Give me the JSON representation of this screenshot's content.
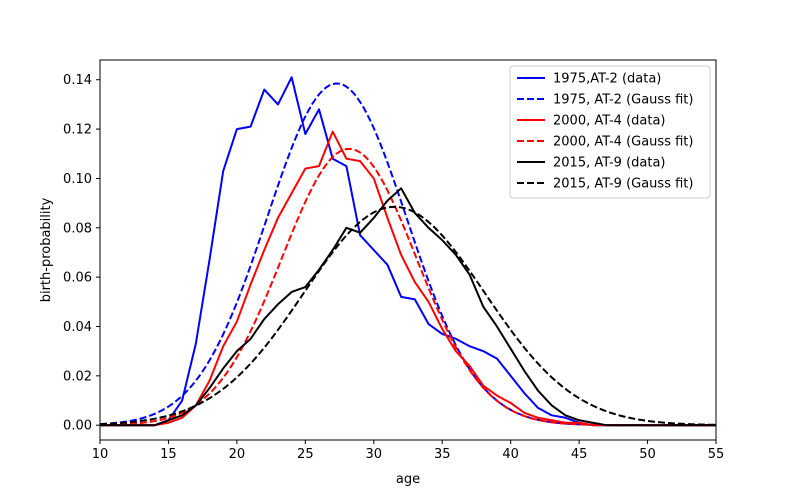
{
  "chart_data": {
    "type": "line",
    "title": "",
    "xlabel": "age",
    "ylabel": "birth-probability",
    "xlim": [
      10,
      55
    ],
    "ylim": [
      -0.006,
      0.148
    ],
    "xticks": [
      10,
      15,
      20,
      25,
      30,
      35,
      40,
      45,
      50,
      55
    ],
    "yticks": [
      0.0,
      0.02,
      0.04,
      0.06,
      0.08,
      0.1,
      0.12,
      0.14
    ],
    "ytick_labels": [
      "0.00",
      "0.02",
      "0.04",
      "0.06",
      "0.08",
      "0.10",
      "0.12",
      "0.14"
    ],
    "grid": false,
    "legend_position": "top-right",
    "series": [
      {
        "name": "1975,AT-2 (data)",
        "color": "#0000ff",
        "dash": "solid",
        "x": [
          10,
          11,
          12,
          13,
          14,
          15,
          16,
          17,
          18,
          19,
          20,
          21,
          22,
          23,
          24,
          25,
          26,
          27,
          28,
          29,
          30,
          31,
          32,
          33,
          34,
          35,
          36,
          37,
          38,
          39,
          40,
          41,
          42,
          43,
          44,
          45,
          46,
          47,
          48,
          49,
          50,
          51,
          52,
          53,
          54,
          55
        ],
        "y": [
          0,
          0,
          0,
          0,
          0,
          0.002,
          0.01,
          0.033,
          0.067,
          0.103,
          0.12,
          0.121,
          0.136,
          0.13,
          0.141,
          0.118,
          0.128,
          0.108,
          0.105,
          0.077,
          0.071,
          0.065,
          0.052,
          0.051,
          0.041,
          0.037,
          0.035,
          0.032,
          0.03,
          0.027,
          0.02,
          0.013,
          0.007,
          0.004,
          0.003,
          0.001,
          0,
          0,
          0,
          0,
          0,
          0,
          0,
          0,
          0,
          0
        ]
      },
      {
        "name": "1975, AT-2 (Gauss fit)",
        "color": "#0000ff",
        "dash": "dashed",
        "gauss": {
          "mu": 27.3,
          "sigma": 5.1,
          "peak": 0.1385
        }
      },
      {
        "name": "2000, AT-4 (data)",
        "color": "#ff0000",
        "dash": "solid",
        "x": [
          10,
          11,
          12,
          13,
          14,
          15,
          16,
          17,
          18,
          19,
          20,
          21,
          22,
          23,
          24,
          25,
          26,
          27,
          28,
          29,
          30,
          31,
          32,
          33,
          34,
          35,
          36,
          37,
          38,
          39,
          40,
          41,
          42,
          43,
          44,
          45,
          46,
          47,
          48,
          49,
          50,
          51,
          52,
          53,
          54,
          55
        ],
        "y": [
          0,
          0,
          0,
          0,
          0,
          0.001,
          0.003,
          0.008,
          0.018,
          0.032,
          0.042,
          0.057,
          0.071,
          0.084,
          0.094,
          0.104,
          0.105,
          0.119,
          0.108,
          0.107,
          0.1,
          0.084,
          0.069,
          0.058,
          0.05,
          0.039,
          0.03,
          0.024,
          0.016,
          0.012,
          0.009,
          0.005,
          0.003,
          0.002,
          0.001,
          0.001,
          0,
          0,
          0,
          0,
          0,
          0,
          0,
          0,
          0,
          0
        ]
      },
      {
        "name": "2000, AT-4 (Gauss fit)",
        "color": "#ff0000",
        "dash": "dashed",
        "gauss": {
          "mu": 28.2,
          "sigma": 4.9,
          "peak": 0.112
        }
      },
      {
        "name": "2015, AT-9 (data)",
        "color": "#000000",
        "dash": "solid",
        "x": [
          10,
          11,
          12,
          13,
          14,
          15,
          16,
          17,
          18,
          19,
          20,
          21,
          22,
          23,
          24,
          25,
          26,
          27,
          28,
          29,
          30,
          31,
          32,
          33,
          34,
          35,
          36,
          37,
          38,
          39,
          40,
          41,
          42,
          43,
          44,
          45,
          46,
          47,
          48,
          49,
          50,
          51,
          52,
          53,
          54,
          55
        ],
        "y": [
          0,
          0,
          0,
          0,
          0,
          0.002,
          0.004,
          0.008,
          0.015,
          0.023,
          0.03,
          0.035,
          0.043,
          0.049,
          0.054,
          0.056,
          0.063,
          0.071,
          0.08,
          0.078,
          0.084,
          0.091,
          0.096,
          0.086,
          0.08,
          0.075,
          0.069,
          0.061,
          0.048,
          0.04,
          0.031,
          0.022,
          0.014,
          0.008,
          0.004,
          0.002,
          0.001,
          0,
          0,
          0,
          0,
          0,
          0,
          0,
          0,
          0
        ]
      },
      {
        "name": "2015, AT-9 (Gauss fit)",
        "color": "#000000",
        "dash": "dashed",
        "gauss": {
          "mu": 31.5,
          "sigma": 6.6,
          "peak": 0.0885
        }
      }
    ]
  }
}
